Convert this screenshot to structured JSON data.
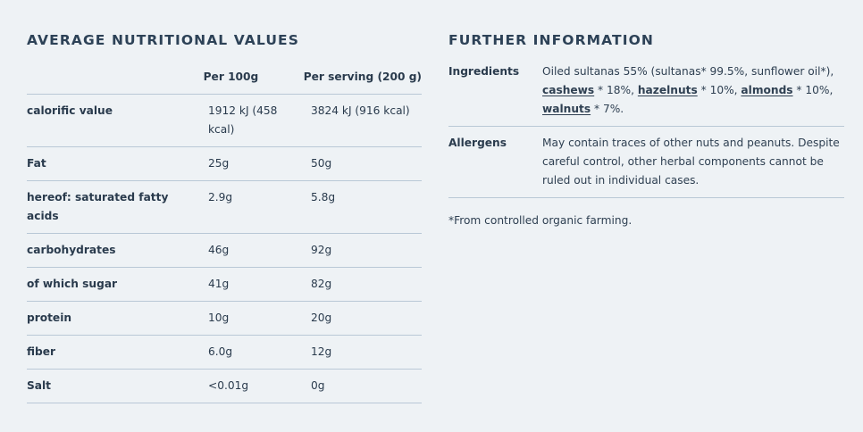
{
  "nutrition": {
    "title": "AVERAGE NUTRITIONAL VALUES",
    "headers": [
      "",
      "Per 100g",
      "Per serving (200 g)"
    ],
    "rows": [
      {
        "name": "calorific value",
        "per100": "1912 kJ (458 kcal)",
        "serving": "3824 kJ (916 kcal)"
      },
      {
        "name": "Fat",
        "per100": "25g",
        "serving": "50g"
      },
      {
        "name": "hereof: saturated fatty acids",
        "per100": "2.9g",
        "serving": "5.8g"
      },
      {
        "name": "carbohydrates",
        "per100": "46g",
        "serving": "92g"
      },
      {
        "name": "of which sugar",
        "per100": "41g",
        "serving": "82g"
      },
      {
        "name": "protein",
        "per100": "10g",
        "serving": "20g"
      },
      {
        "name": "fiber",
        "per100": "6.0g",
        "serving": "12g"
      },
      {
        "name": "Salt",
        "per100": "<0.01g",
        "serving": "0g"
      }
    ]
  },
  "further": {
    "title": "FURTHER INFORMATION",
    "ingredients": {
      "label": "Ingredients",
      "text1": "Oiled sultanas 55% (sultanas* 99.5%, sunflower oil*), ",
      "cashews": "cashews",
      "text2": " * 18%, ",
      "hazelnuts": "hazelnuts",
      "text3": " * 10%, ",
      "almonds": "almonds",
      "text4": " * 10%, ",
      "walnuts": "walnuts",
      "text5": " * 7%."
    },
    "allergens": {
      "label": "Allergens",
      "text": "May contain traces of other nuts and peanuts. Despite careful control, other herbal components cannot be ruled out in individual cases."
    },
    "footnote": "*From controlled organic farming."
  }
}
